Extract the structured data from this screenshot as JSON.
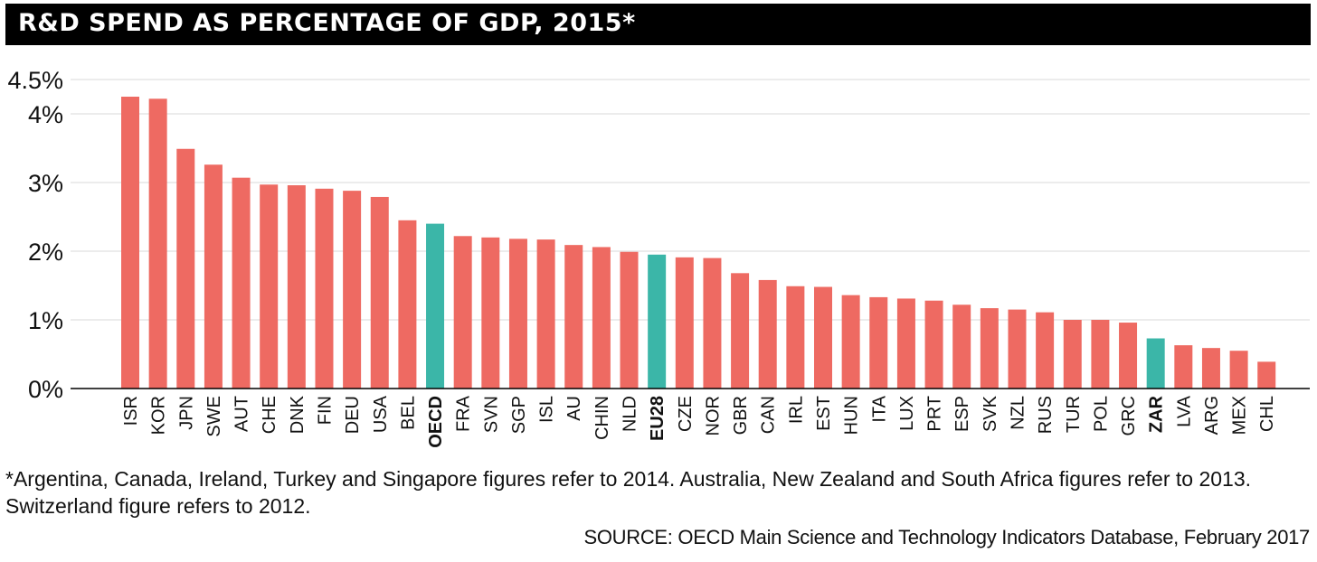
{
  "title": "R&D SPEND AS PERCENTAGE OF GDP, 2015*",
  "footnote_line1": "*Argentina, Canada, Ireland, Turkey and Singapore figures refer to 2014. Australia, New Zealand and South Africa figures refer to 2013.",
  "footnote_line2": "Switzerland figure refers to 2012.",
  "source": "SOURCE: OECD Main Science and Technology Indicators Database, February 2017",
  "colors": {
    "country": "#EE6A62",
    "aggregate": "#3BB6A8",
    "grid": "#d9d9d9",
    "axis": "#000000",
    "title_bg": "#000000"
  },
  "chart_data": {
    "type": "bar",
    "title": "R&D SPEND AS PERCENTAGE OF GDP, 2015*",
    "xlabel": "",
    "ylabel": "",
    "ylim": [
      0,
      4.5
    ],
    "yticks": [
      0,
      1,
      2,
      3,
      4,
      4.5
    ],
    "ytick_labels": [
      "0%",
      "1%",
      "2%",
      "3%",
      "4%",
      "4.5%"
    ],
    "grid": true,
    "categories": [
      "ISR",
      "KOR",
      "JPN",
      "SWE",
      "AUT",
      "CHE",
      "DNK",
      "FIN",
      "DEU",
      "USA",
      "BEL",
      "OECD",
      "FRA",
      "SVN",
      "SGP",
      "ISL",
      "AU",
      "CHIN",
      "NLD",
      "EU28",
      "CZE",
      "NOR",
      "GBR",
      "CAN",
      "IRL",
      "EST",
      "HUN",
      "ITA",
      "LUX",
      "PRT",
      "ESP",
      "SVK",
      "NZL",
      "RUS",
      "TUR",
      "POL",
      "GRC",
      "ZAR",
      "LVA",
      "ARG",
      "MEX",
      "CHL"
    ],
    "values": [
      4.25,
      4.22,
      3.49,
      3.26,
      3.07,
      2.97,
      2.96,
      2.91,
      2.88,
      2.79,
      2.45,
      2.4,
      2.22,
      2.2,
      2.18,
      2.17,
      2.09,
      2.06,
      1.99,
      1.95,
      1.91,
      1.9,
      1.68,
      1.58,
      1.49,
      1.48,
      1.36,
      1.33,
      1.31,
      1.28,
      1.22,
      1.17,
      1.15,
      1.11,
      1.0,
      1.0,
      0.96,
      0.73,
      0.63,
      0.59,
      0.55,
      0.39
    ],
    "highlighted": [
      "OECD",
      "EU28",
      "ZAR"
    ]
  }
}
